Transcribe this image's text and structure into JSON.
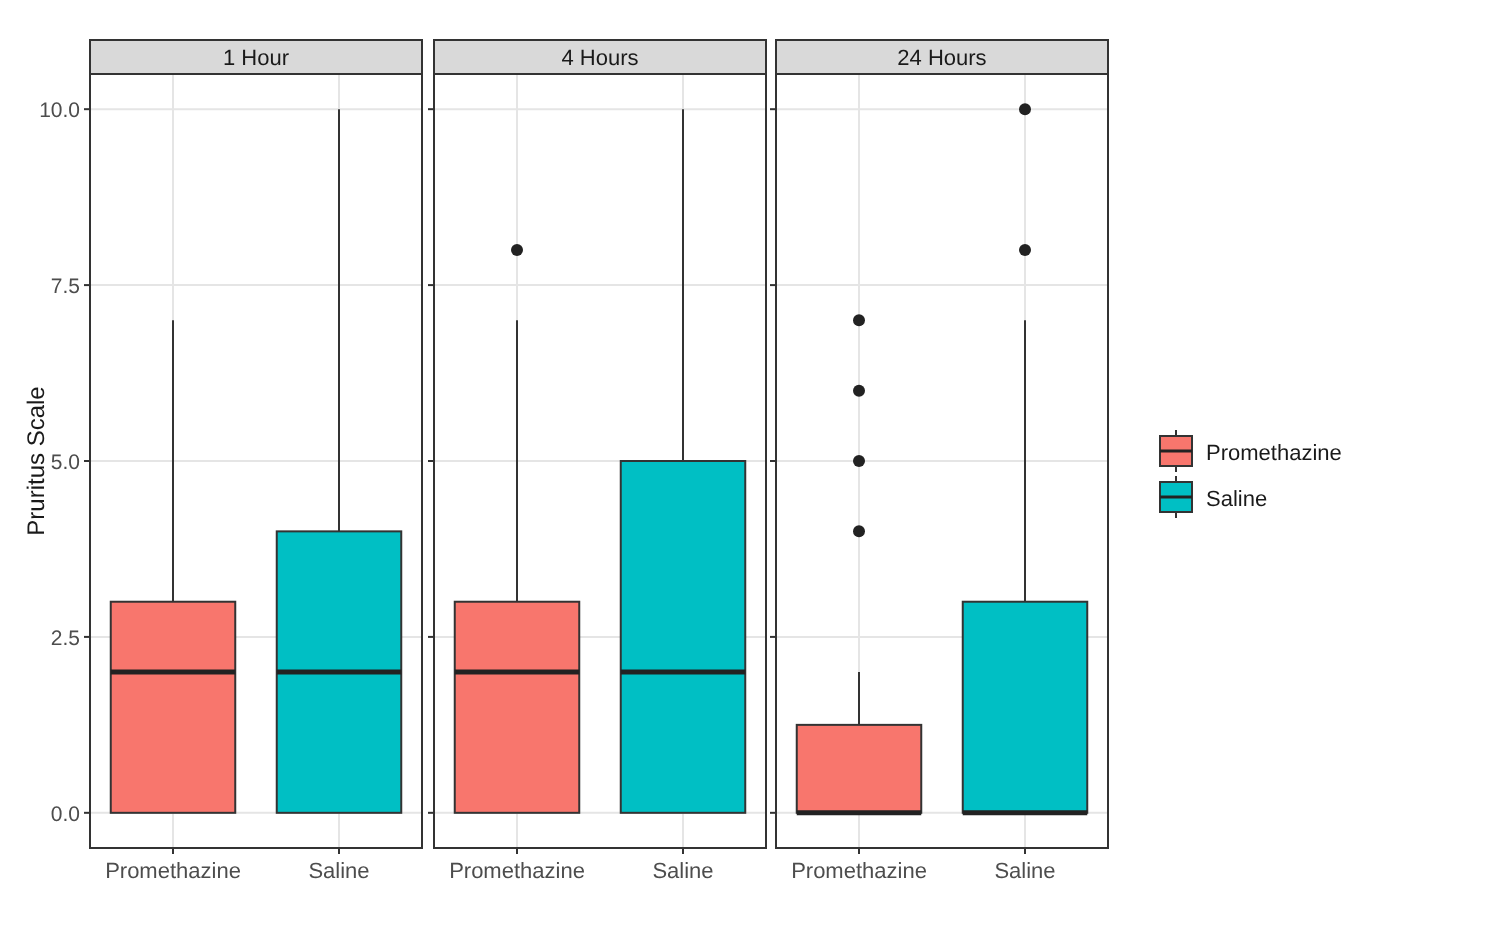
{
  "chart_data": [
    {
      "type": "box",
      "title": "1 Hour",
      "ylabel": "Pruritus Scale",
      "categories": [
        "Promethazine",
        "Saline"
      ],
      "ylim": [
        -0.5,
        10.5
      ],
      "yticks": [
        {
          "value": 0,
          "label": "0.0"
        },
        {
          "value": 2.5,
          "label": "2.5"
        },
        {
          "value": 5,
          "label": "5.0"
        },
        {
          "value": 7.5,
          "label": "7.5"
        },
        {
          "value": 10,
          "label": "10.0"
        }
      ],
      "grid": true,
      "series": [
        {
          "color": "#f8766d",
          "boxes": [
            {
              "low": 0,
              "q1": 0,
              "median": 2,
              "q3": 3,
              "high": 7
            },
            null
          ]
        },
        {
          "color": "#00bfc4",
          "boxes": [
            null,
            {
              "low": 0,
              "q1": 0,
              "median": 2,
              "q3": 4,
              "high": 10
            }
          ]
        }
      ]
    },
    {
      "type": "box",
      "title": "4 Hours",
      "categories": [
        "Promethazine",
        "Saline"
      ],
      "ylim": [
        -0.5,
        10.5
      ],
      "yticks": [
        0,
        2.5,
        5,
        7.5,
        10
      ],
      "grid": true,
      "tick_labels": "x",
      "series": [
        {
          "color": "#f8766d",
          "boxes": [
            {
              "low": 0,
              "q1": 0,
              "median": 2,
              "q3": 3,
              "high": 7,
              "outliers": [
                8
              ]
            },
            null
          ]
        },
        {
          "color": "#00bfc4",
          "boxes": [
            null,
            {
              "low": 0,
              "q1": 0,
              "median": 2,
              "q3": 5,
              "high": 10
            }
          ]
        }
      ]
    },
    {
      "type": "box",
      "title": "24 Hours",
      "categories": [
        "Promethazine",
        "Saline"
      ],
      "ylim": [
        -0.5,
        10.5
      ],
      "yticks": [
        0,
        2.5,
        5,
        7.5,
        10
      ],
      "grid": true,
      "tick_labels": "x",
      "legend": "right",
      "series": [
        {
          "name": "Promethazine",
          "color": "#f8766d",
          "boxes": [
            {
              "low": 0,
              "q1": 0,
              "median": 0,
              "q3": 1.25,
              "high": 2,
              "outliers": [
                4,
                5,
                6,
                7
              ]
            },
            null
          ]
        },
        {
          "name": "Saline",
          "color": "#00bfc4",
          "boxes": [
            null,
            {
              "low": 0,
              "q1": 0,
              "median": 0,
              "q3": 3,
              "high": 7,
              "outliers": [
                8,
                10
              ]
            }
          ]
        }
      ]
    }
  ]
}
